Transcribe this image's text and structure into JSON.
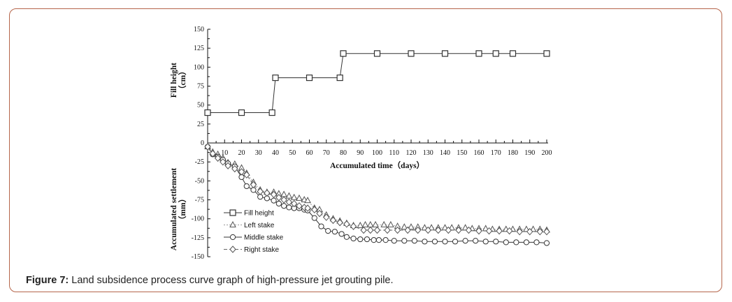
{
  "caption": {
    "label": "Figure 7:",
    "text": " Land subsidence process curve graph of high-pressure jet grouting pile."
  },
  "chart_data": [
    {
      "type": "line",
      "ylabel": "Fill height（cm）",
      "ylabel_line1": "Fill height",
      "ylabel_line2": "（cm）",
      "ylim": [
        0,
        150
      ],
      "yticks": [
        0,
        25,
        50,
        75,
        100,
        125,
        150
      ],
      "series": [
        {
          "name": "Fill height",
          "marker": "square",
          "color": "#333333",
          "x": [
            0,
            20,
            38,
            40,
            60,
            78,
            80,
            100,
            120,
            140,
            160,
            170,
            180,
            200
          ],
          "y": [
            40,
            40,
            40,
            86,
            86,
            86,
            118,
            118,
            118,
            118,
            118,
            118,
            118,
            118
          ]
        }
      ]
    },
    {
      "type": "line",
      "xlabel": "Accumulated time（days）",
      "ylabel": "Accumulated settlement（mm）",
      "ylabel_line1": "Accumulated settlement",
      "ylabel_line2": "（mm）",
      "xlim": [
        0,
        200
      ],
      "xticks": [
        10,
        20,
        30,
        40,
        50,
        60,
        70,
        80,
        90,
        100,
        110,
        120,
        130,
        140,
        150,
        160,
        170,
        180,
        190,
        200
      ],
      "ylim": [
        -150,
        0
      ],
      "yticks": [
        -25,
        -50,
        -75,
        -100,
        -125,
        -150
      ],
      "legend": "left",
      "series": [
        {
          "name": "Left stake",
          "marker": "triangle",
          "color": "#999999",
          "x": [
            0,
            3,
            6,
            9,
            12,
            16,
            20,
            23,
            27,
            31,
            35,
            39,
            42,
            45,
            48,
            51,
            54,
            57,
            59,
            63,
            66,
            70,
            74,
            78,
            82,
            86,
            90,
            93,
            96,
            99,
            104,
            108,
            112,
            116,
            120,
            124,
            128,
            132,
            136,
            140,
            144,
            148,
            152,
            156,
            160,
            164,
            168,
            172,
            176,
            180,
            184,
            188,
            192,
            196,
            200
          ],
          "y": [
            -5,
            -12,
            -15,
            -20,
            -26,
            -28,
            -33,
            -40,
            -52,
            -62,
            -65,
            -65,
            -67,
            -68,
            -70,
            -72,
            -73,
            -75,
            -76,
            -86,
            -88,
            -95,
            -100,
            -103,
            -106,
            -109,
            -109,
            -108,
            -108,
            -108,
            -108,
            -108,
            -110,
            -111,
            -111,
            -111,
            -112,
            -112,
            -112,
            -112,
            -112,
            -112,
            -112,
            -113,
            -113,
            -113,
            -114,
            -114,
            -114,
            -114,
            -114,
            -114,
            -114,
            -114,
            -115
          ]
        },
        {
          "name": "Middle stake",
          "marker": "circle",
          "color": "#333333",
          "x": [
            0,
            3,
            6,
            9,
            12,
            16,
            20,
            23,
            27,
            31,
            35,
            39,
            42,
            45,
            48,
            51,
            54,
            57,
            59,
            63,
            67,
            71,
            75,
            79,
            82,
            86,
            90,
            94,
            98,
            101,
            105,
            110,
            116,
            122,
            128,
            134,
            140,
            146,
            152,
            158,
            164,
            170,
            176,
            182,
            188,
            194,
            200
          ],
          "y": [
            -5,
            -15,
            -18,
            -22,
            -27,
            -31,
            -45,
            -57,
            -62,
            -71,
            -73,
            -76,
            -80,
            -83,
            -85,
            -86,
            -86,
            -88,
            -89,
            -99,
            -110,
            -116,
            -117,
            -120,
            -124,
            -126,
            -127,
            -127,
            -128,
            -128,
            -128,
            -129,
            -129,
            -129,
            -130,
            -130,
            -130,
            -130,
            -129,
            -129,
            -130,
            -130,
            -131,
            -131,
            -131,
            -131,
            -132
          ]
        },
        {
          "name": "Right stake",
          "marker": "diamond",
          "color": "#666666",
          "x": [
            0,
            3,
            6,
            9,
            12,
            16,
            20,
            23,
            27,
            31,
            35,
            39,
            42,
            45,
            48,
            51,
            54,
            57,
            59,
            63,
            66,
            70,
            74,
            78,
            82,
            86,
            92,
            96,
            100,
            106,
            112,
            118,
            124,
            130,
            136,
            142,
            148,
            154,
            160,
            166,
            172,
            178,
            184,
            190,
            196,
            200
          ],
          "y": [
            -5,
            -14,
            -20,
            -25,
            -30,
            -34,
            -38,
            -42,
            -55,
            -64,
            -66,
            -68,
            -72,
            -75,
            -78,
            -80,
            -83,
            -85,
            -86,
            -88,
            -93,
            -98,
            -102,
            -105,
            -107,
            -110,
            -115,
            -115,
            -115,
            -115,
            -115,
            -115,
            -115,
            -115,
            -115,
            -115,
            -115,
            -115,
            -116,
            -116,
            -116,
            -116,
            -117,
            -117,
            -117,
            -117
          ]
        }
      ]
    }
  ]
}
